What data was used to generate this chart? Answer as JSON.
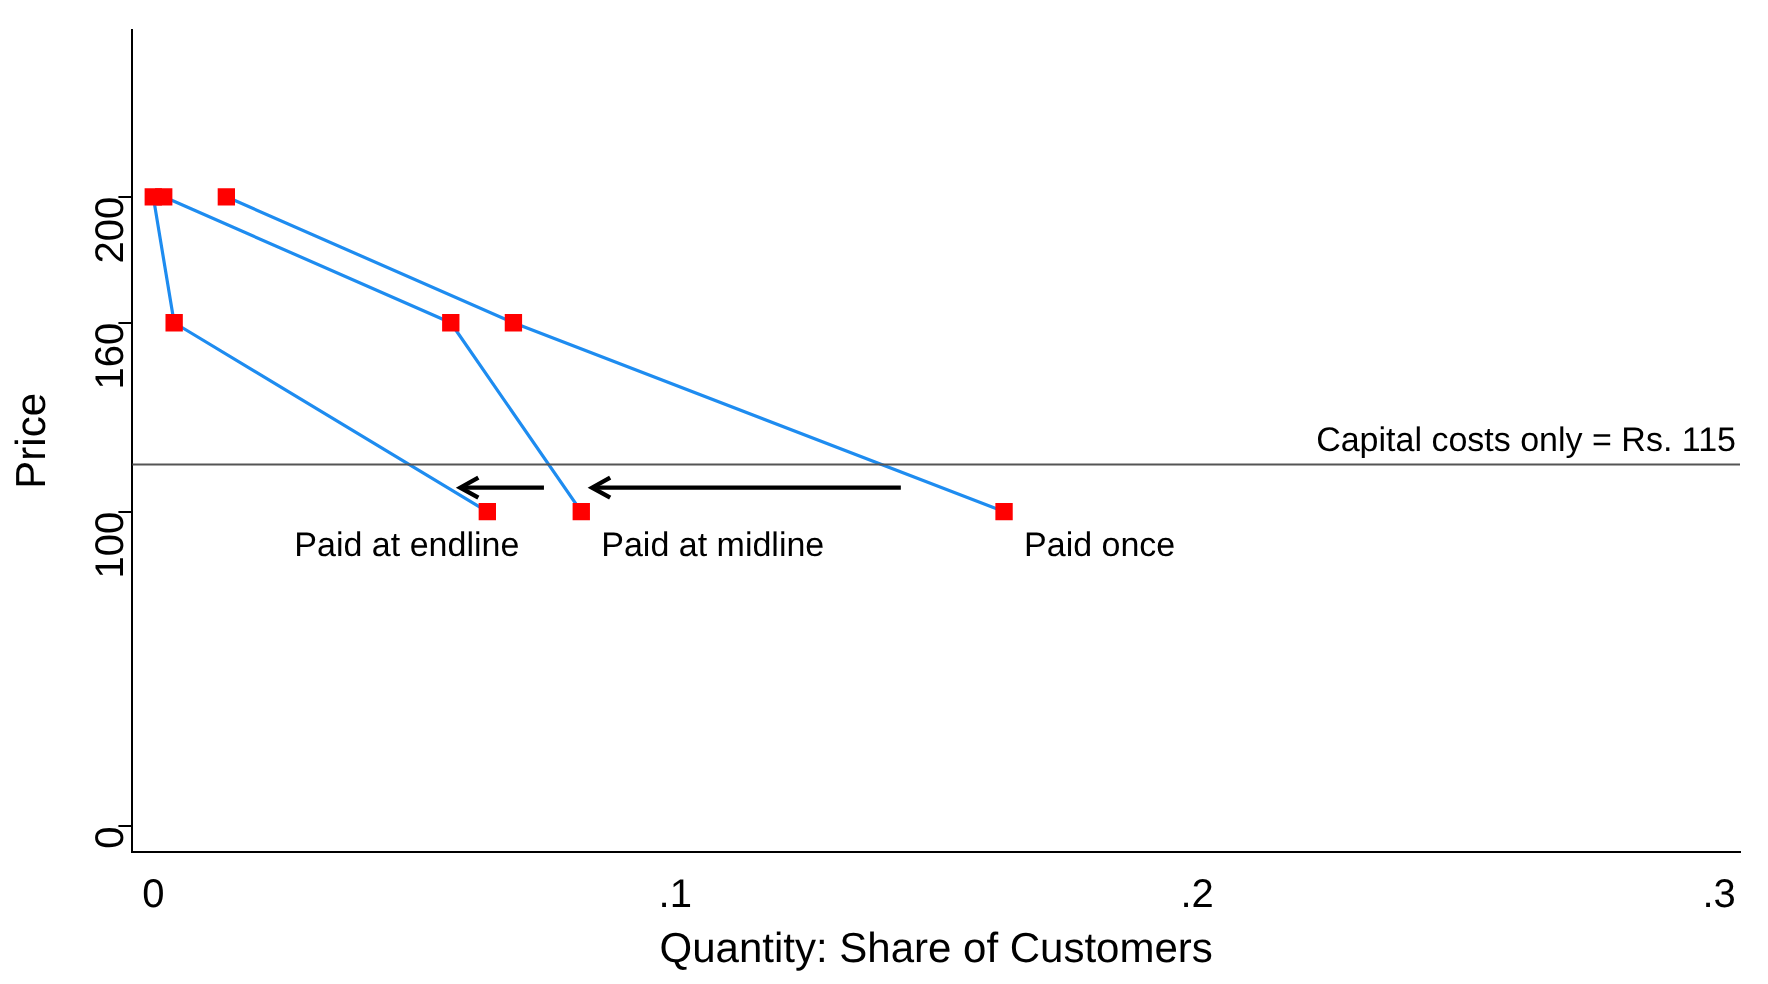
{
  "chart_data": {
    "type": "line",
    "xlabel": "Quantity: Share of Customers",
    "ylabel": "Price",
    "series": [
      {
        "name": "Paid at endline",
        "color": "#1e8cf0",
        "colors": [
          "#ff0000",
          "#ff0000",
          "#ff0000"
        ],
        "x": [
          0,
          0.004,
          0.064
        ],
        "values": [
          200,
          160,
          100
        ]
      },
      {
        "name": "Paid at midline",
        "color": "#1e8cf0",
        "colors": [
          "#ff0000",
          "#ff0000",
          "#ff0000"
        ],
        "x": [
          0.002,
          0.057,
          0.082
        ],
        "values": [
          200,
          160,
          100
        ]
      },
      {
        "name": "Paid once",
        "color": "#1e8cf0",
        "colors": [
          "#ff0000",
          "#ff0000",
          "#ff0000"
        ],
        "x": [
          0.014,
          0.069,
          0.163
        ],
        "values": [
          200,
          160,
          100
        ]
      }
    ],
    "xlim": [
      -0.004,
      0.304
    ],
    "xticks": [
      {
        "value": 0,
        "label": "0"
      },
      {
        "value": 0.1,
        "label": ".1"
      },
      {
        "value": 0.2,
        "label": ".2"
      },
      {
        "value": 0.3,
        "label": ".3"
      }
    ],
    "ylim": [
      -8,
      253
    ],
    "yticks": [
      0,
      100,
      160,
      200
    ],
    "ref_lines": [
      {
        "axis": "y",
        "value": 115,
        "label": "Capital costs only = Rs. 115",
        "color": "#555555"
      }
    ],
    "marker": "square",
    "line_style": "solid",
    "grid": false,
    "legend": false
  }
}
